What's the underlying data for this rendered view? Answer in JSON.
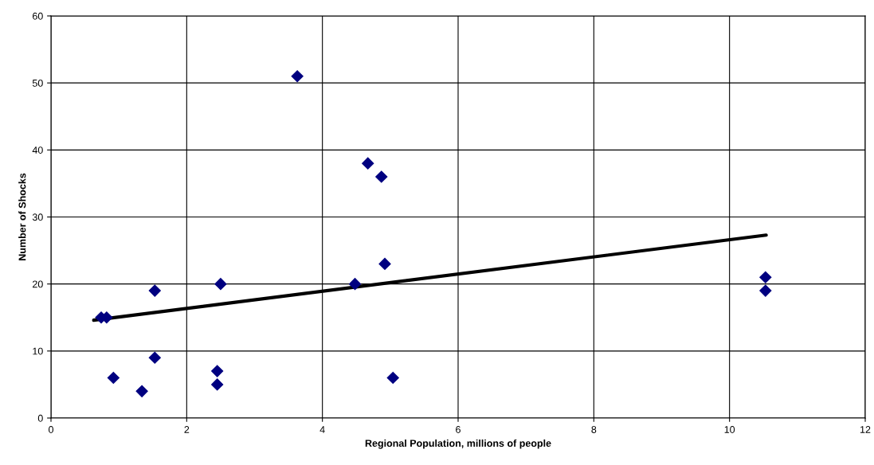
{
  "chart_data": {
    "type": "scatter",
    "xlabel": "Regional Population, millions of people",
    "ylabel": "Number of Shocks",
    "xlim": [
      0,
      12
    ],
    "xticks": [
      0,
      2,
      4,
      6,
      8,
      10,
      12
    ],
    "ylim": [
      0,
      60
    ],
    "yticks": [
      0,
      10,
      20,
      30,
      40,
      50,
      60
    ],
    "grid": true,
    "legend": false,
    "marker": "diamond",
    "series": [
      {
        "color": "#000080",
        "x": [
          0.74,
          0.82,
          0.92,
          1.34,
          1.53,
          1.53,
          2.45,
          2.45,
          2.5,
          3.63,
          4.48,
          4.67,
          4.87,
          4.92,
          5.04,
          10.53,
          10.53
        ],
        "values": [
          15,
          15,
          6,
          4,
          19,
          9,
          7,
          5,
          20,
          51,
          20,
          38,
          36,
          23,
          6,
          21,
          19
        ]
      },
      {
        "type": "line",
        "color": "#000000",
        "marker": "none",
        "x": [
          0.63,
          10.54
        ],
        "values": [
          14.6,
          27.3
        ]
      }
    ]
  }
}
